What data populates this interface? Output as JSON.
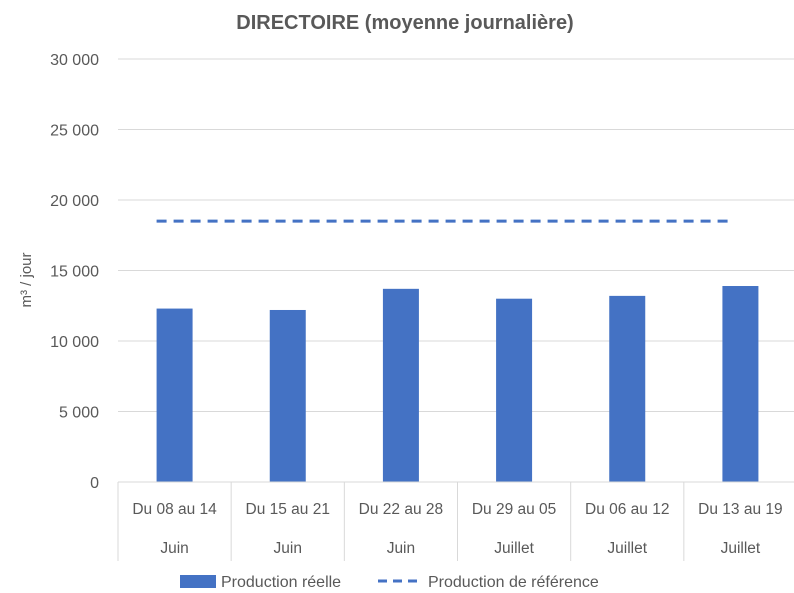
{
  "chart_data": {
    "type": "bar",
    "title": "DIRECTOIRE (moyenne journalière)",
    "ylabel": "m³ / jour",
    "xlabel": "",
    "ylim": [
      0,
      30000
    ],
    "yticks": [
      0,
      5000,
      10000,
      15000,
      20000,
      25000,
      30000
    ],
    "ytick_labels": [
      "0",
      "5 000",
      "10 000",
      "15 000",
      "20 000",
      "25 000",
      "30 000"
    ],
    "categories": [
      "Du 08 au 14",
      "Du 15 au 21",
      "Du 22 au 28",
      "Du 29 au 05",
      "Du 06 au 12",
      "Du 13 au 19"
    ],
    "months": [
      "Juin",
      "Juin",
      "Juin",
      "Juillet",
      "Juillet",
      "Juillet"
    ],
    "grid": true,
    "legend_position": "bottom",
    "series": [
      {
        "name": "Production réelle",
        "type": "bar",
        "color": "#4472c4",
        "values": [
          12300,
          12200,
          13700,
          13000,
          13200,
          13900
        ]
      },
      {
        "name": "Production de référence",
        "type": "line",
        "style": "dashed",
        "color": "#4472c4",
        "values": [
          18500,
          18500,
          18500,
          18500,
          18500,
          18500
        ]
      }
    ]
  }
}
